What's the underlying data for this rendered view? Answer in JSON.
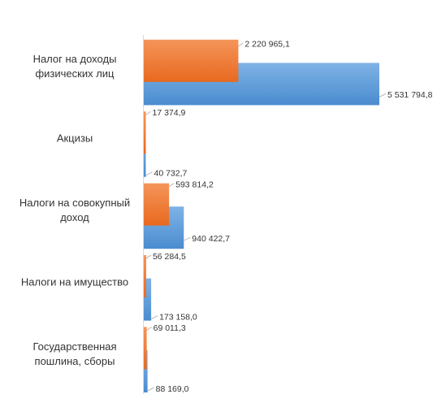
{
  "chart_data": {
    "type": "bar",
    "orientation": "horizontal",
    "categories": [
      [
        "Налог на доходы",
        "физических лиц"
      ],
      [
        "Акцизы"
      ],
      [
        "Налоги на совокупный",
        "доход"
      ],
      [
        "Налоги на имущество"
      ],
      [
        "Государственная",
        "пошлина, сборы"
      ]
    ],
    "series": [
      {
        "color": "#ed7d31",
        "values": [
          2220965.1,
          17374.9,
          593814.2,
          56284.5,
          69011.3
        ],
        "labels": [
          "2 220 965,1",
          "17 374,9",
          "593 814,2",
          "56 284,5",
          "69 011,3"
        ]
      },
      {
        "color": "#5b9bd5",
        "values": [
          5531794.8,
          40732.7,
          940422.7,
          173158.0,
          88169.0
        ],
        "labels": [
          "5 531 794,8",
          "40 732,7",
          "940 422,7",
          "173 158,0",
          "88 169,0"
        ]
      }
    ],
    "xlim": [
      0,
      5531794.8
    ],
    "axis_line": "left",
    "gridlines": false,
    "legend": "none",
    "data_labels": "outside-end-with-leader-lines"
  }
}
